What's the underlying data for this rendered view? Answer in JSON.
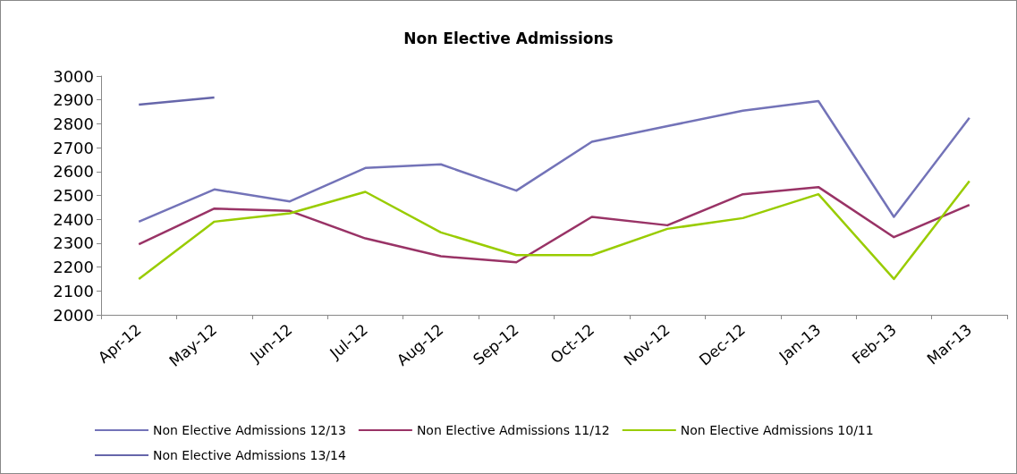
{
  "chart_data": {
    "type": "line",
    "title": "Non Elective Admissions",
    "categories": [
      "Apr-12",
      "May-12",
      "Jun-12",
      "Jul-12",
      "Aug-12",
      "Sep-12",
      "Oct-12",
      "Nov-12",
      "Dec-12",
      "Jan-13",
      "Feb-13",
      "Mar-13"
    ],
    "series": [
      {
        "name": "Non Elective Admissions 12/13",
        "color": "#7373b8",
        "values": [
          2390,
          2525,
          2475,
          2615,
          2630,
          2520,
          2725,
          2790,
          2855,
          2895,
          2410,
          2825
        ]
      },
      {
        "name": "Non Elective Admissions 11/12",
        "color": "#993366",
        "values": [
          2295,
          2445,
          2435,
          2320,
          2245,
          2220,
          2410,
          2375,
          2505,
          2535,
          2325,
          2460
        ]
      },
      {
        "name": "Non Elective Admissions 10/11",
        "color": "#99cc00",
        "values": [
          2150,
          2390,
          2425,
          2515,
          2345,
          2250,
          2250,
          2360,
          2405,
          2505,
          2150,
          2560
        ]
      },
      {
        "name": "Non Elective Admissions 13/14",
        "color": "#6666aa",
        "values": [
          2880,
          2910,
          null,
          null,
          null,
          null,
          null,
          null,
          null,
          null,
          null,
          null
        ]
      }
    ],
    "ylim": [
      2000,
      3000
    ],
    "yticks": [
      2000,
      2100,
      2200,
      2300,
      2400,
      2500,
      2600,
      2700,
      2800,
      2900,
      3000
    ],
    "grid": false,
    "legend": "bottom",
    "marker": "none",
    "line_style": "solid"
  }
}
